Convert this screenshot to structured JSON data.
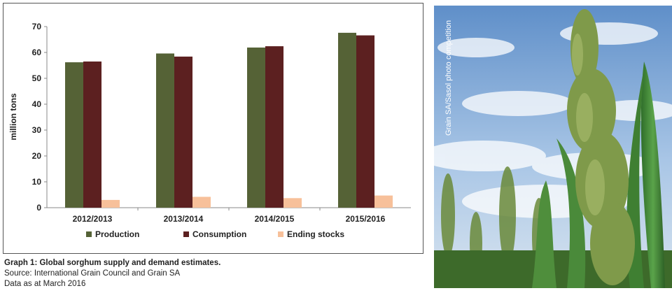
{
  "chart_data": {
    "type": "bar",
    "categories": [
      "2012/2013",
      "2013/2014",
      "2014/2015",
      "2015/2016"
    ],
    "series": [
      {
        "name": "Production",
        "color": "#556236",
        "values": [
          56.2,
          59.6,
          61.9,
          67.6
        ]
      },
      {
        "name": "Consumption",
        "color": "#5c2020",
        "values": [
          56.5,
          58.4,
          62.4,
          66.6
        ]
      },
      {
        "name": "Ending stocks",
        "color": "#f7c09a",
        "values": [
          3.0,
          4.2,
          3.7,
          4.7
        ]
      }
    ],
    "ylabel": "million tons",
    "ylim": [
      0,
      70
    ],
    "yticks": [
      0,
      10,
      20,
      30,
      40,
      50,
      60,
      70
    ],
    "grid": false,
    "legend_position": "bottom"
  },
  "caption": {
    "title": "Graph 1: Global sorghum supply and demand estimates.",
    "source": "Source: International Grain Council and Grain SA",
    "date": "Data as at March 2016"
  },
  "photo": {
    "credit": "Grain SA/Sasol photo competition",
    "subject": "sorghum-plant-photo"
  }
}
